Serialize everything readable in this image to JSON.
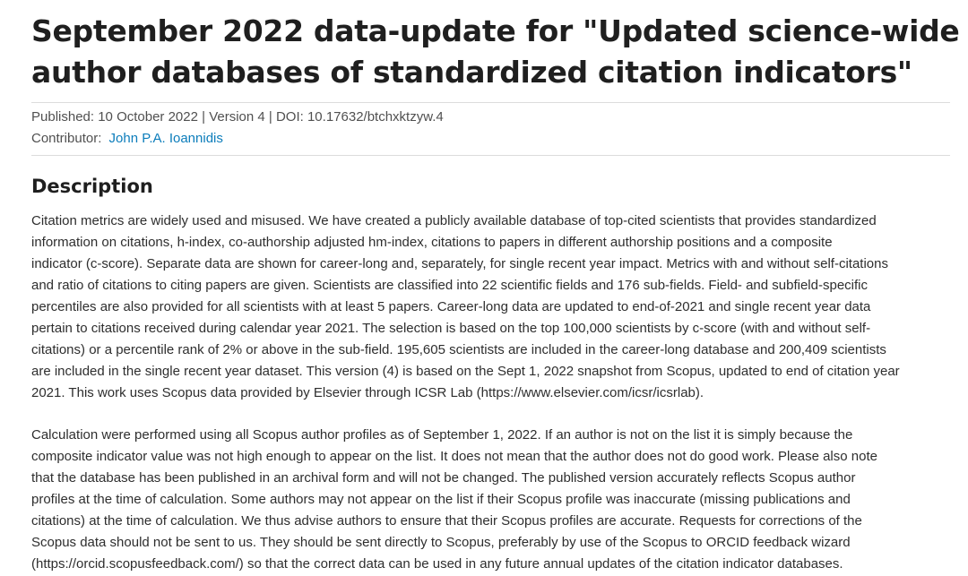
{
  "title_lines": [
    "September 2022 data-update for \"Updated science-wide",
    "author databases of standardized citation indicators\""
  ],
  "meta": {
    "published": "Published: 10 October 2022 | Version 4 | DOI: 10.17632/btchxktzyw.4",
    "contributor_label": "Contributor:",
    "contributor_name": "John P.A. Ioannidis"
  },
  "description": {
    "heading": "Description",
    "paragraph1": [
      "Citation metrics are widely used and misused. We have created a publicly available database of top-cited scientists that provides standardized",
      "information on citations, h-index, co-authorship adjusted hm-index, citations to papers in different authorship positions and a composite",
      "indicator (c-score). Separate data are shown for career-long and, separately, for single recent year impact. Metrics with and without self-citations",
      "and ratio of citations to citing papers are given. Scientists are classified into 22 scientific fields and 176 sub-fields. Field- and subfield-specific",
      "percentiles are also provided for all scientists with at least 5 papers. Career-long data are updated to end-of-2021 and single recent year data",
      "pertain to citations received during calendar year 2021. The selection is based on the top 100,000 scientists by c-score (with and without self-",
      "citations) or a percentile rank of 2% or above in the sub-field. 195,605 scientists are included in the career-long database and 200,409 scientists",
      "are included in the single recent year dataset. This version (4) is based on the Sept 1, 2022 snapshot from Scopus, updated to end of citation year",
      "2021. This work uses Scopus data provided by Elsevier through ICSR Lab (https://www.elsevier.com/icsr/icsrlab)."
    ],
    "paragraph2": [
      "Calculation were performed using all Scopus author profiles as of September 1, 2022. If an author is not on the list it is simply because the",
      "composite indicator value was not high enough to appear on the list. It does not mean that the author does not do good work.  Please also note",
      "that the database has been published in an archival form and will not be changed. The published version accurately reflects Scopus author",
      "profiles at the time of calculation.  Some authors may not appear on the list if their Scopus profile was inaccurate (missing publications and",
      "citations) at the time of calculation. We thus advise authors to ensure that their Scopus profiles are accurate. Requests for corrections of the",
      "Scopus data should not be sent to us. They should be sent directly to Scopus, preferably by use of the Scopus to ORCID feedback wizard",
      "(https://orcid.scopusfeedback.com/) so that the correct data can be used in any future annual updates of the citation indicator databases."
    ]
  },
  "colors": {
    "link": "#0c7dbb",
    "text": "#2e2e2e"
  }
}
